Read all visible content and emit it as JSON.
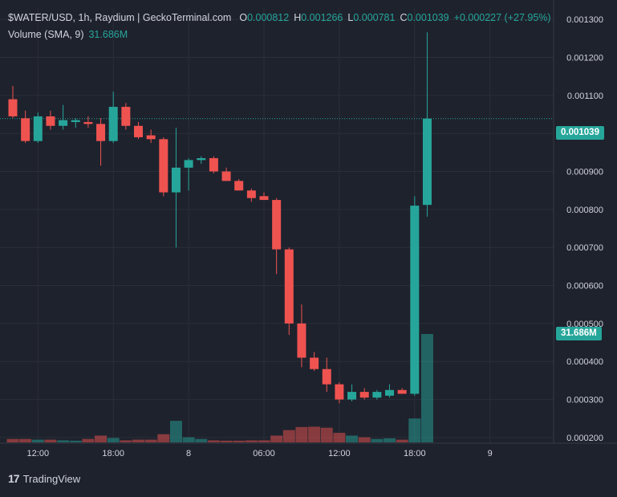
{
  "legend": {
    "symbol": "$WATER/USD, 1h, Raydium | GeckoTerminal.com",
    "o_label": "O",
    "o_value": "0.000812",
    "h_label": "H",
    "h_value": "0.001266",
    "l_label": "L",
    "l_value": "0.000781",
    "c_label": "C",
    "c_value": "0.001039",
    "change": "+0.000227 (+27.95%)",
    "volume_label": "Volume (SMA, 9)",
    "volume_value": "31.686M"
  },
  "price_tag": "0.001039",
  "volume_tag": "31.686M",
  "branding": {
    "name": "TradingView"
  },
  "colors": {
    "up": "#26a69a",
    "down": "#ef5350",
    "background": "#1e222d",
    "grid": "#2a2e39"
  },
  "chart_data": {
    "type": "candlestick",
    "title": "$WATER/USD, 1h, Raydium | GeckoTerminal.com",
    "y_ticks": [
      "0.001300",
      "0.001200",
      "0.001100",
      "0.001000",
      "0.000900",
      "0.000800",
      "0.000700",
      "0.000600",
      "0.000500",
      "0.000400",
      "0.000300",
      "0.000200"
    ],
    "ylim": [
      0.000185,
      0.00133
    ],
    "x_ticks": [
      {
        "label": "12:00",
        "index": 2
      },
      {
        "label": "18:00",
        "index": 8
      },
      {
        "label": "8",
        "index": 14
      },
      {
        "label": "06:00",
        "index": 20
      },
      {
        "label": "12:00",
        "index": 26
      },
      {
        "label": "18:00",
        "index": 32
      },
      {
        "label": "9",
        "index": 38
      }
    ],
    "candles": [
      {
        "o": 0.00109,
        "h": 0.001125,
        "l": 0.00104,
        "c": 0.001045
      },
      {
        "o": 0.00104,
        "h": 0.00106,
        "l": 0.000975,
        "c": 0.00098
      },
      {
        "o": 0.00098,
        "h": 0.001055,
        "l": 0.000975,
        "c": 0.001045
      },
      {
        "o": 0.001045,
        "h": 0.00106,
        "l": 0.00101,
        "c": 0.00102
      },
      {
        "o": 0.00102,
        "h": 0.001075,
        "l": 0.00101,
        "c": 0.001035
      },
      {
        "o": 0.00103,
        "h": 0.00104,
        "l": 0.001015,
        "c": 0.001035
      },
      {
        "o": 0.00103,
        "h": 0.001045,
        "l": 0.001015,
        "c": 0.001025
      },
      {
        "o": 0.001025,
        "h": 0.00104,
        "l": 0.000915,
        "c": 0.00098
      },
      {
        "o": 0.00098,
        "h": 0.00111,
        "l": 0.000975,
        "c": 0.00107
      },
      {
        "o": 0.00107,
        "h": 0.00108,
        "l": 0.00101,
        "c": 0.00102
      },
      {
        "o": 0.00102,
        "h": 0.00103,
        "l": 0.000985,
        "c": 0.00099
      },
      {
        "o": 0.000995,
        "h": 0.00101,
        "l": 0.000975,
        "c": 0.000985
      },
      {
        "o": 0.000985,
        "h": 0.00099,
        "l": 0.000835,
        "c": 0.000845
      },
      {
        "o": 0.000845,
        "h": 0.001015,
        "l": 0.0007,
        "c": 0.00091
      },
      {
        "o": 0.00091,
        "h": 0.000935,
        "l": 0.00085,
        "c": 0.00093
      },
      {
        "o": 0.00093,
        "h": 0.00094,
        "l": 0.00092,
        "c": 0.000935
      },
      {
        "o": 0.000935,
        "h": 0.00094,
        "l": 0.000895,
        "c": 0.0009
      },
      {
        "o": 0.0009,
        "h": 0.00091,
        "l": 0.000875,
        "c": 0.000875
      },
      {
        "o": 0.000875,
        "h": 0.00088,
        "l": 0.00085,
        "c": 0.00085
      },
      {
        "o": 0.00085,
        "h": 0.000855,
        "l": 0.00082,
        "c": 0.00083
      },
      {
        "o": 0.000835,
        "h": 0.000845,
        "l": 0.000825,
        "c": 0.000825
      },
      {
        "o": 0.000825,
        "h": 0.00083,
        "l": 0.00063,
        "c": 0.000695
      },
      {
        "o": 0.000695,
        "h": 0.0007,
        "l": 0.00047,
        "c": 0.0005
      },
      {
        "o": 0.0005,
        "h": 0.00055,
        "l": 0.000385,
        "c": 0.00041
      },
      {
        "o": 0.00041,
        "h": 0.000425,
        "l": 0.000375,
        "c": 0.00038
      },
      {
        "o": 0.00038,
        "h": 0.00041,
        "l": 0.00032,
        "c": 0.00034
      },
      {
        "o": 0.00034,
        "h": 0.000345,
        "l": 0.00029,
        "c": 0.0003
      },
      {
        "o": 0.0003,
        "h": 0.00034,
        "l": 0.000295,
        "c": 0.00032
      },
      {
        "o": 0.00032,
        "h": 0.00033,
        "l": 0.0003,
        "c": 0.000305
      },
      {
        "o": 0.000305,
        "h": 0.000325,
        "l": 0.0003,
        "c": 0.00032
      },
      {
        "o": 0.00031,
        "h": 0.00034,
        "l": 0.000305,
        "c": 0.000325
      },
      {
        "o": 0.000325,
        "h": 0.00033,
        "l": 0.000315,
        "c": 0.000315
      },
      {
        "o": 0.000315,
        "h": 0.000835,
        "l": 0.00031,
        "c": 0.00081
      },
      {
        "o": 0.000812,
        "h": 0.001266,
        "l": 0.000781,
        "c": 0.001039
      }
    ],
    "volume": {
      "label": "Volume (SMA, 9)",
      "ylim": [
        0,
        31.686
      ],
      "values": [
        1.0,
        1.0,
        0.8,
        0.8,
        0.6,
        0.5,
        1.0,
        2.0,
        1.3,
        0.6,
        0.8,
        0.8,
        2.4,
        6.3,
        1.5,
        1.0,
        0.6,
        0.5,
        0.5,
        0.6,
        0.6,
        2.0,
        3.6,
        4.5,
        4.6,
        4.3,
        2.8,
        2.0,
        1.5,
        1.0,
        1.2,
        0.8,
        7.0,
        31.686
      ]
    }
  }
}
